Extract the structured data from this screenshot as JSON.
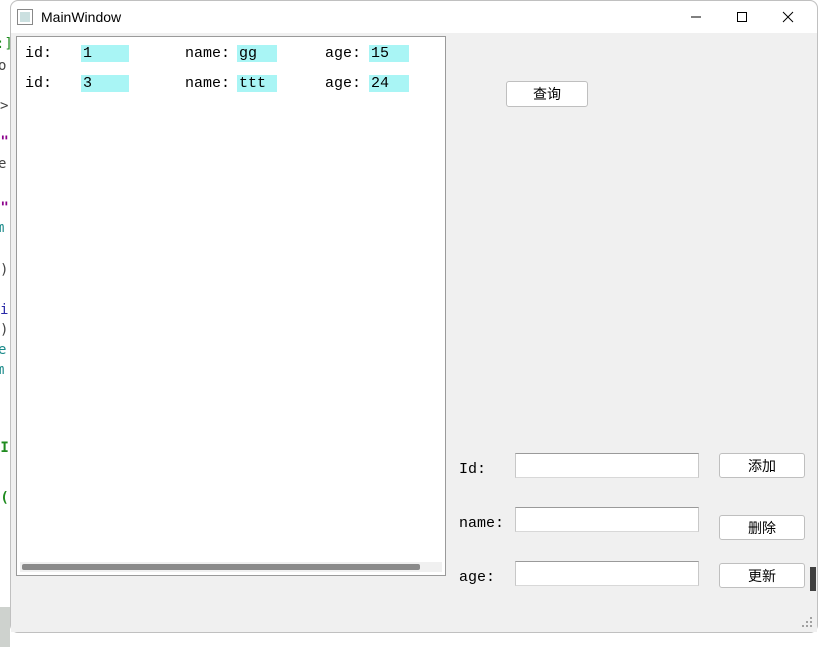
{
  "window": {
    "title": "MainWindow"
  },
  "list": {
    "rows": [
      {
        "id_label": "id:",
        "id_val": "1",
        "name_label": "name:",
        "name_val": "gg",
        "age_label": "age:",
        "age_val": "15"
      },
      {
        "id_label": "id:",
        "id_val": "3",
        "name_label": "name:",
        "name_val": "ttt",
        "age_label": "age:",
        "age_val": "24"
      }
    ],
    "highlight_color": "#a9f5f5"
  },
  "buttons": {
    "query": "查询",
    "add": "添加",
    "delete": "删除",
    "update": "更新"
  },
  "form": {
    "id_label": "Id:",
    "name_label": "name:",
    "age_label": "age:",
    "id_value": "",
    "name_value": "",
    "age_value": ""
  },
  "gutter": {
    "t1": ":]",
    "t2": "o",
    "t3": ">",
    "t4": "o\"",
    "t5": "e",
    "t6": "n\"",
    "t7": "m",
    "t8": ")",
    "t9": "i",
    "t10": ")",
    "t11": "e",
    "t12": "m",
    "t13": "'I",
    "t14": "'(",
    "colors": {
      "green": "#1f8b1f",
      "purple": "#8b008b",
      "dark": "#444444",
      "blue": "#2a2aa8",
      "teal": "#1a8a8a"
    }
  },
  "colors": {
    "window_bg": "#f0f0f0",
    "list_bg": "#ffffff",
    "border": "#9a9a9a",
    "button_bg": "#ffffff",
    "button_border": "#bfbfbf",
    "scrollbar_thumb": "#8a8a8a",
    "text": "#000000"
  }
}
